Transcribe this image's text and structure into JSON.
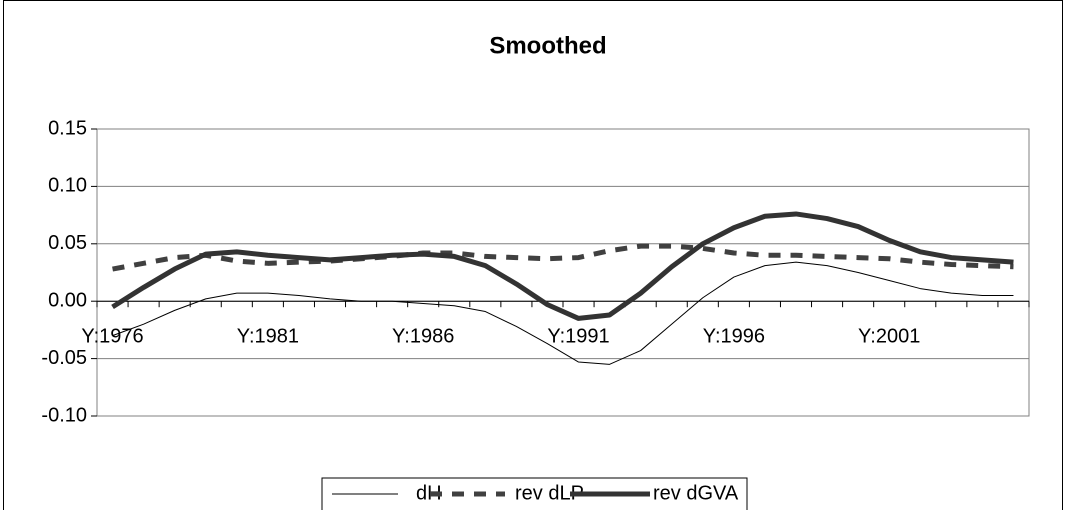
{
  "chart_data": {
    "type": "line",
    "title": "Smoothed",
    "categories": [
      "Y:1976",
      null,
      null,
      null,
      null,
      "Y:1981",
      null,
      null,
      null,
      null,
      "Y:1986",
      null,
      null,
      null,
      null,
      "Y:1991",
      null,
      null,
      null,
      null,
      "Y:1996",
      null,
      null,
      null,
      null,
      "Y:2001",
      null,
      null,
      null,
      null
    ],
    "series": [
      {
        "name": "dH",
        "color": "#000000",
        "values": [
          -0.03,
          -0.02,
          -0.008,
          0.002,
          0.007,
          0.007,
          0.005,
          0.002,
          0.0,
          0.0,
          -0.002,
          -0.004,
          -0.009,
          -0.022,
          -0.037,
          -0.053,
          -0.055,
          -0.043,
          -0.02,
          0.003,
          0.021,
          0.031,
          0.034,
          0.031,
          0.025,
          0.018,
          0.011,
          0.007,
          0.005,
          0.005
        ]
      },
      {
        "name": "rev dLP",
        "color": "#404040",
        "values": [
          0.028,
          0.033,
          0.038,
          0.04,
          0.035,
          0.033,
          0.034,
          0.035,
          0.037,
          0.039,
          0.042,
          0.042,
          0.039,
          0.038,
          0.037,
          0.038,
          0.044,
          0.048,
          0.048,
          0.046,
          0.042,
          0.04,
          0.04,
          0.039,
          0.038,
          0.037,
          0.034,
          0.032,
          0.031,
          0.03
        ]
      },
      {
        "name": "rev dGVA",
        "color": "#333333",
        "values": [
          -0.005,
          0.012,
          0.028,
          0.041,
          0.043,
          0.04,
          0.038,
          0.036,
          0.038,
          0.04,
          0.041,
          0.039,
          0.031,
          0.015,
          -0.003,
          -0.015,
          -0.012,
          0.007,
          0.03,
          0.05,
          0.064,
          0.074,
          0.076,
          0.072,
          0.065,
          0.053,
          0.043,
          0.038,
          0.036,
          0.034
        ]
      }
    ],
    "ylim": [
      -0.1,
      0.15
    ],
    "yticks": [
      {
        "value": -0.1,
        "label": "-0.10"
      },
      -0.05,
      {
        "value": 0.0,
        "label": "0.00"
      },
      0.05,
      {
        "value": 0.1,
        "label": "0.10"
      },
      0.15
    ],
    "grid": true,
    "legend": "bottom"
  }
}
